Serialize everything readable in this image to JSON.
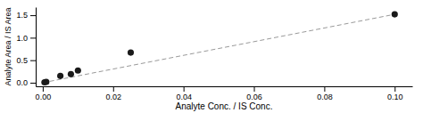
{
  "chart_data": {
    "type": "scatter",
    "xlabel": "Analyte Conc. / IS Conc.",
    "ylabel": "Analyte Area / IS Area",
    "series": [
      {
        "type": "scatter",
        "color": "#1a1a1a",
        "marker": "circle",
        "x": [
          0.0005,
          0.001,
          0.005,
          0.008,
          0.01,
          0.025,
          0.1
        ],
        "values": [
          0.01,
          0.02,
          0.15,
          0.19,
          0.27,
          0.67,
          1.52
        ]
      },
      {
        "type": "line",
        "color": "#999999",
        "line_style": "dashed",
        "x": [
          0.0,
          0.1
        ],
        "values": [
          0.0,
          1.52
        ]
      }
    ],
    "xlim": [
      -0.002,
      0.105
    ],
    "ylim": [
      -0.08,
      1.68
    ],
    "xticks": [
      {
        "value": 0.0,
        "label": "0.00"
      },
      0.02,
      0.04,
      0.06,
      0.08,
      {
        "value": 0.1,
        "label": "0.10"
      }
    ],
    "yticks": [
      {
        "value": 0.0,
        "label": "0.0"
      },
      0.5,
      {
        "value": 1.0,
        "label": "1.0"
      },
      1.5
    ],
    "grid": false
  }
}
